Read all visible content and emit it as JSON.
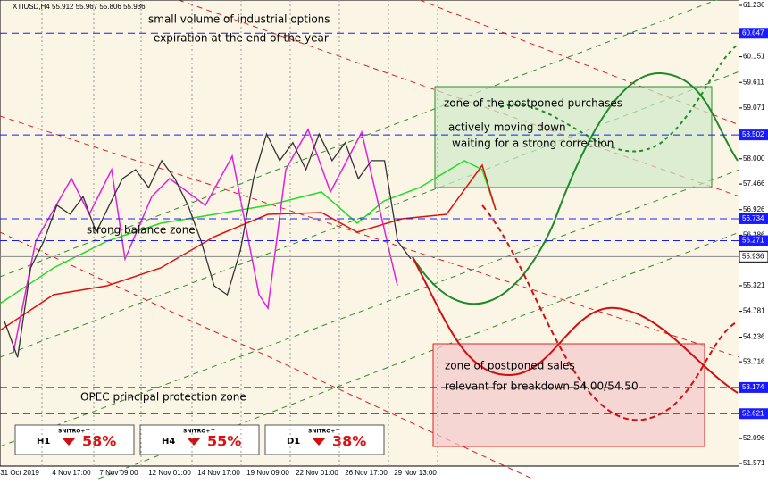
{
  "chart_data": {
    "type": "line",
    "header": "XTIUSD,H4 55.912 55.967 55.806 55.936",
    "ylim": [
      51.571,
      61.236
    ],
    "yticks": [
      61.236,
      60.151,
      59.611,
      59.071,
      {
        "value": 58.0,
        "label": "58.000"
      },
      57.466,
      56.926,
      56.386,
      55.321,
      54.781,
      54.236,
      53.716,
      52.096,
      51.571
    ],
    "levels": [
      60.647,
      58.502,
      56.734,
      56.271,
      53.174,
      52.621
    ],
    "current_price": 55.936,
    "x_axis_labels": [
      "31 Oct 2019",
      "4 Nov 17:00",
      "7 Nov 09:00",
      "12 Nov 01:00",
      "14 Nov 17:00",
      "19 Nov 09:00",
      "22 Nov 01:00",
      "26 Nov 17:00",
      "29 Nov 13:00"
    ],
    "series": [
      {
        "color": "#333333",
        "values": [
          54.57,
          53.81,
          55.7,
          56.26,
          57.02,
          56.83,
          57.2,
          56.45,
          57.02,
          57.58,
          57.77,
          57.39,
          57.96,
          57.58,
          57.02,
          56.26,
          55.32,
          55.13,
          56.07,
          57.58,
          58.52,
          57.96,
          58.34,
          57.77,
          58.52,
          57.96,
          58.34,
          57.58,
          57.96,
          57.96,
          56.26,
          55.89
        ]
      }
    ],
    "annotations": [
      "small volume of industrial options",
      "expiration at the end of the year",
      "zone of the postponed purchases",
      "actively moving down",
      "waiting for a strong correction",
      "strong balance zone",
      "zone of postponed sales",
      "relevant for breakdown 54.00/54.50",
      "OPEC principal protection zone"
    ],
    "badges": [
      {
        "brand": "SNITRO+™",
        "timeframe": "H1",
        "percent": "58%"
      },
      {
        "brand": "SNITRO+™",
        "timeframe": "H4",
        "percent": "55%"
      },
      {
        "brand": "SNITRO+™",
        "timeframe": "D1",
        "percent": "38%"
      }
    ]
  }
}
